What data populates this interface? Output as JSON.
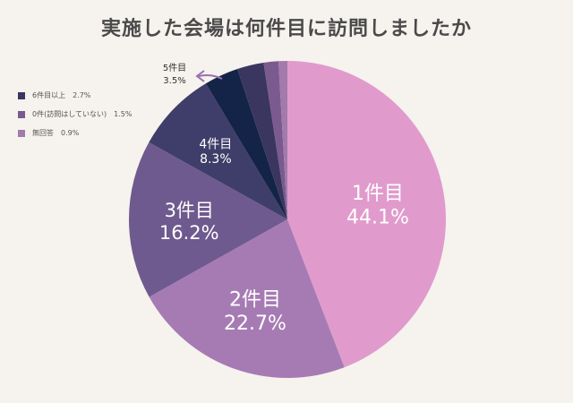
{
  "chart_data": {
    "type": "pie",
    "title": "実施した会場は何件目に訪問しましたか",
    "slices": [
      {
        "label": "1件目",
        "value": 44.1,
        "display": "44.1%",
        "color": "#e09bcc"
      },
      {
        "label": "2件目",
        "value": 22.7,
        "display": "22.7%",
        "color": "#a67bb3"
      },
      {
        "label": "3件目",
        "value": 16.2,
        "display": "16.2%",
        "color": "#6e5a8e"
      },
      {
        "label": "4件目",
        "value": 8.3,
        "display": "8.3%",
        "color": "#3f3d69"
      },
      {
        "label": "5件目",
        "value": 3.5,
        "display": "3.5%",
        "color": "#142448"
      },
      {
        "label": "6件目以上",
        "value": 2.7,
        "display": "2.7%",
        "color": "#3a3660"
      },
      {
        "label": "0件(訪問はしていない)",
        "value": 1.5,
        "display": "1.5%",
        "color": "#7b5a8f"
      },
      {
        "label": "無回答",
        "value": 0.9,
        "display": "0.9%",
        "color": "#a27aab"
      }
    ],
    "legend": {
      "placement": "left",
      "items": [
        {
          "text": "6件目以上　2.7%",
          "color": "#3a3660"
        },
        {
          "text": "0件(訪問はしていない)　1.5%",
          "color": "#7b5a8f"
        },
        {
          "text": "無回答　0.9%",
          "color": "#a27aab"
        }
      ]
    }
  }
}
